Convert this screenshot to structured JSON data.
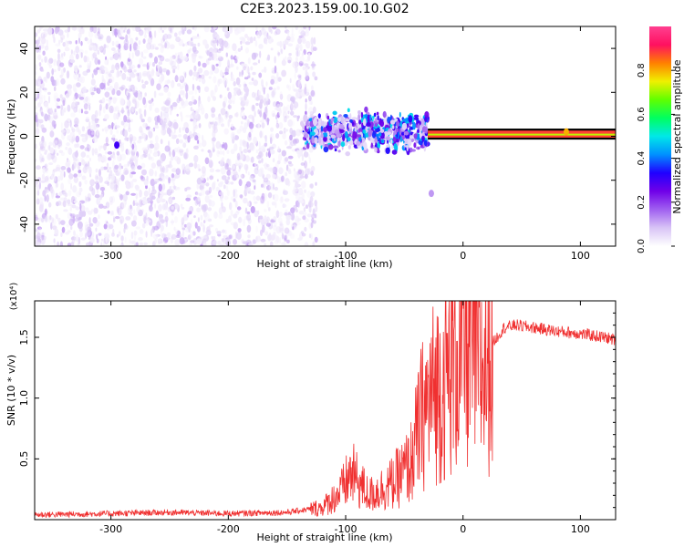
{
  "title": "C2E3.2023.159.00.10.G02",
  "colors": {
    "snr_line": "#f03030",
    "frame": "#000000"
  },
  "colorbar": {
    "label": "Normalized spectral amplitude",
    "ticks": [
      "0.0",
      "0.2",
      "0.4",
      "0.6",
      "0.8"
    ],
    "tick_values": [
      0.0,
      0.2,
      0.4,
      0.6,
      0.8
    ],
    "range": [
      0,
      1
    ],
    "palette": [
      "#ffffff",
      "#d8c4f6",
      "#a060f0",
      "#7000e8",
      "#2000ff",
      "#0090ff",
      "#00e8e8",
      "#00ff60",
      "#60ff00",
      "#f0f000",
      "#ff8000",
      "#ff1060",
      "#ff4090"
    ]
  },
  "chart_data": [
    {
      "type": "heatmap",
      "title": "C2E3.2023.159.00.10.G02",
      "xlabel": "Height of straight line (km)",
      "ylabel": "Frequency (Hz)",
      "xlim": [
        -365,
        130
      ],
      "ylim": [
        -50,
        50
      ],
      "x_ticks": [
        -300,
        -200,
        -100,
        0,
        100
      ],
      "x_tick_labels": [
        "-300",
        "-200",
        "-100",
        "0",
        "100"
      ],
      "y_ticks": [
        -40,
        -20,
        0,
        20,
        40
      ],
      "y_tick_labels": [
        "-40",
        "-20",
        "0",
        "20",
        "40"
      ],
      "regions": [
        {
          "name": "noise",
          "x": [
            -365,
            -125
          ],
          "y": [
            -50,
            50
          ],
          "amplitude": [
            0.02,
            0.12
          ]
        },
        {
          "name": "transition",
          "x": [
            -135,
            -30
          ],
          "y": [
            -10,
            14
          ],
          "amplitude": [
            0.05,
            0.5
          ]
        },
        {
          "name": "carrier",
          "x": [
            -30,
            130
          ],
          "y": [
            0,
            2
          ],
          "amplitude": [
            0.7,
            0.95
          ]
        }
      ],
      "features": [
        {
          "x": -295,
          "y": -4,
          "amplitude": 0.3
        },
        {
          "x": -27,
          "y": -26,
          "amplitude": 0.12
        },
        {
          "x": 88,
          "y": 2,
          "amplitude": 0.8
        }
      ]
    },
    {
      "type": "line",
      "xlabel": "Height of straight line (km)",
      "ylabel": "SNR (10 * v/v)",
      "y_multiplier": "(x10⁴)",
      "xlim": [
        -365,
        130
      ],
      "ylim": [
        0,
        1.8
      ],
      "x_ticks": [
        -300,
        -200,
        -100,
        0,
        100
      ],
      "x_tick_labels": [
        "-300",
        "-200",
        "-100",
        "0",
        "100"
      ],
      "y_ticks": [
        0.5,
        1.0,
        1.5
      ],
      "y_tick_labels": [
        "0.5",
        "1.0",
        "1.5"
      ],
      "series": [
        {
          "x": [
            -365,
            -300,
            -250,
            -200,
            -150,
            -120,
            -105,
            -95,
            -80,
            -60,
            -45,
            -35,
            -25,
            -15,
            -5,
            5,
            15,
            25,
            35,
            45,
            60,
            80,
            100,
            120,
            130
          ],
          "y": [
            0.04,
            0.05,
            0.06,
            0.05,
            0.06,
            0.1,
            0.22,
            0.38,
            0.2,
            0.3,
            0.45,
            0.85,
            1.05,
            1.15,
            1.35,
            1.5,
            1.22,
            1.45,
            1.58,
            1.6,
            1.58,
            1.55,
            1.53,
            1.5,
            1.48
          ]
        }
      ]
    }
  ]
}
